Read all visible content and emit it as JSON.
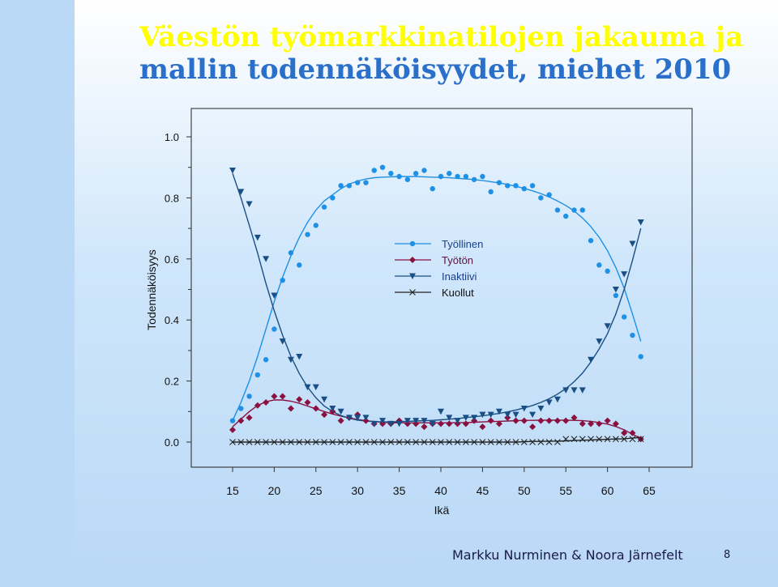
{
  "slide": {
    "title_line1": "Väestön työmarkkinatilojen jakauma ja",
    "title_line2": "mallin todennäköisyydet, miehet 2010",
    "footer_author": "Markku Nurminen & Noora Järnefelt",
    "page_number": "8",
    "colors": {
      "title_line1": "#ffff00",
      "title_line2": "#2a6fc9",
      "background": "#c8e2fa"
    }
  },
  "chart_data": {
    "type": "scatter",
    "xlabel": "Ikä",
    "ylabel": "Todennäköisyys",
    "xlim": [
      15,
      65
    ],
    "ylim": [
      0,
      1
    ],
    "x_ticks": [
      "15",
      "20",
      "25",
      "30",
      "35",
      "40",
      "45",
      "50",
      "55",
      "60",
      "65"
    ],
    "y_ticks": [
      "0.0",
      "0.2",
      "0.4",
      "0.6",
      "0.8",
      "1.0"
    ],
    "grid": false,
    "legend_position": "center",
    "x": [
      15,
      16,
      17,
      18,
      19,
      20,
      21,
      22,
      23,
      24,
      25,
      26,
      27,
      28,
      29,
      30,
      31,
      32,
      33,
      34,
      35,
      36,
      37,
      38,
      39,
      40,
      41,
      42,
      43,
      44,
      45,
      46,
      47,
      48,
      49,
      50,
      51,
      52,
      53,
      54,
      55,
      56,
      57,
      58,
      59,
      60,
      61,
      62,
      63,
      64
    ],
    "series": [
      {
        "name": "Työllinen",
        "color": "#1e90e6",
        "marker": "circle",
        "values": [
          0.07,
          0.11,
          0.15,
          0.22,
          0.27,
          0.37,
          0.53,
          0.62,
          0.58,
          0.68,
          0.71,
          0.77,
          0.8,
          0.84,
          0.84,
          0.85,
          0.85,
          0.89,
          0.9,
          0.88,
          0.87,
          0.86,
          0.88,
          0.89,
          0.83,
          0.87,
          0.88,
          0.87,
          0.87,
          0.86,
          0.87,
          0.82,
          0.85,
          0.84,
          0.84,
          0.83,
          0.84,
          0.8,
          0.81,
          0.76,
          0.74,
          0.76,
          0.76,
          0.66,
          0.58,
          0.56,
          0.48,
          0.41,
          0.35,
          0.28
        ],
        "fit": [
          0.07,
          0.13,
          0.2,
          0.28,
          0.37,
          0.46,
          0.54,
          0.61,
          0.67,
          0.72,
          0.76,
          0.79,
          0.81,
          0.83,
          0.845,
          0.855,
          0.862,
          0.866,
          0.868,
          0.869,
          0.87,
          0.87,
          0.87,
          0.869,
          0.868,
          0.867,
          0.866,
          0.864,
          0.862,
          0.86,
          0.857,
          0.853,
          0.849,
          0.844,
          0.838,
          0.831,
          0.823,
          0.814,
          0.803,
          0.79,
          0.775,
          0.757,
          0.734,
          0.706,
          0.671,
          0.627,
          0.572,
          0.504,
          0.42,
          0.33
        ]
      },
      {
        "name": "Työtön",
        "color": "#8a1040",
        "marker": "diamond",
        "values": [
          0.04,
          0.07,
          0.08,
          0.12,
          0.13,
          0.15,
          0.15,
          0.11,
          0.14,
          0.13,
          0.11,
          0.09,
          0.1,
          0.07,
          0.08,
          0.09,
          0.07,
          0.06,
          0.06,
          0.06,
          0.07,
          0.06,
          0.06,
          0.05,
          0.06,
          0.06,
          0.06,
          0.06,
          0.06,
          0.07,
          0.05,
          0.07,
          0.06,
          0.08,
          0.07,
          0.07,
          0.05,
          0.07,
          0.07,
          0.07,
          0.07,
          0.08,
          0.06,
          0.06,
          0.06,
          0.07,
          0.06,
          0.03,
          0.03,
          0.01
        ],
        "fit": [
          0.05,
          0.075,
          0.1,
          0.12,
          0.132,
          0.138,
          0.138,
          0.134,
          0.127,
          0.118,
          0.109,
          0.1,
          0.092,
          0.085,
          0.079,
          0.074,
          0.07,
          0.067,
          0.065,
          0.063,
          0.063,
          0.063,
          0.063,
          0.063,
          0.063,
          0.063,
          0.063,
          0.064,
          0.064,
          0.065,
          0.066,
          0.067,
          0.068,
          0.069,
          0.07,
          0.071,
          0.071,
          0.072,
          0.072,
          0.072,
          0.072,
          0.071,
          0.07,
          0.068,
          0.064,
          0.059,
          0.051,
          0.04,
          0.026,
          0.012
        ]
      },
      {
        "name": "Inaktiivi",
        "color": "#1a4f85",
        "marker": "triangle-down",
        "values": [
          0.89,
          0.82,
          0.78,
          0.67,
          0.6,
          0.48,
          0.33,
          0.27,
          0.28,
          0.18,
          0.18,
          0.14,
          0.11,
          0.1,
          0.08,
          0.08,
          0.08,
          0.06,
          0.07,
          0.06,
          0.06,
          0.07,
          0.07,
          0.07,
          0.06,
          0.1,
          0.08,
          0.07,
          0.08,
          0.08,
          0.09,
          0.09,
          0.1,
          0.09,
          0.09,
          0.11,
          0.09,
          0.11,
          0.13,
          0.14,
          0.17,
          0.17,
          0.17,
          0.27,
          0.33,
          0.38,
          0.5,
          0.55,
          0.65,
          0.72
        ],
        "fit": [
          0.88,
          0.8,
          0.71,
          0.62,
          0.52,
          0.43,
          0.35,
          0.28,
          0.225,
          0.18,
          0.145,
          0.118,
          0.1,
          0.087,
          0.078,
          0.072,
          0.069,
          0.067,
          0.066,
          0.066,
          0.067,
          0.068,
          0.069,
          0.07,
          0.071,
          0.073,
          0.075,
          0.077,
          0.08,
          0.083,
          0.086,
          0.09,
          0.094,
          0.099,
          0.105,
          0.112,
          0.12,
          0.13,
          0.142,
          0.157,
          0.175,
          0.198,
          0.226,
          0.262,
          0.305,
          0.355,
          0.42,
          0.5,
          0.595,
          0.7
        ]
      },
      {
        "name": "Kuollut",
        "color": "#222222",
        "marker": "x",
        "values": [
          0,
          0,
          0,
          0,
          0,
          0,
          0,
          0,
          0,
          0,
          0,
          0,
          0,
          0,
          0,
          0,
          0,
          0,
          0,
          0,
          0,
          0,
          0,
          0,
          0,
          0,
          0,
          0,
          0,
          0,
          0,
          0,
          0,
          0,
          0,
          0,
          0,
          0,
          0,
          0,
          0.01,
          0.01,
          0.01,
          0.01,
          0.01,
          0.01,
          0.01,
          0.01,
          0.01,
          0.01
        ],
        "fit": [
          0,
          0,
          0,
          0,
          0,
          0,
          0,
          0,
          0,
          0,
          0,
          0,
          0,
          0,
          0,
          0,
          0,
          0,
          0,
          0,
          0,
          0,
          0,
          0,
          0,
          0,
          0,
          0,
          0,
          0,
          0,
          0,
          0,
          0,
          0,
          0.001,
          0.002,
          0.002,
          0.003,
          0.003,
          0.004,
          0.005,
          0.006,
          0.007,
          0.008,
          0.009,
          0.01,
          0.011,
          0.013,
          0.015
        ]
      }
    ]
  }
}
